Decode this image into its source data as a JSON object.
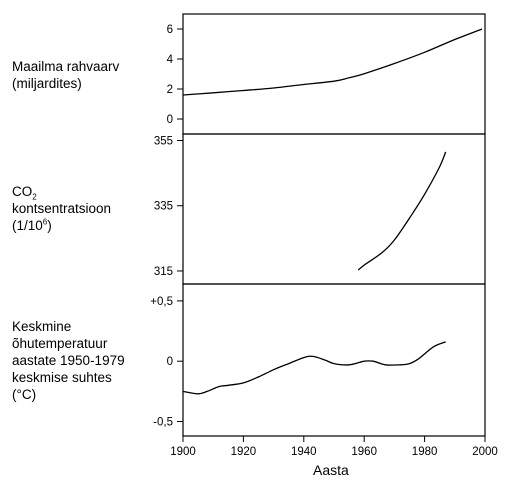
{
  "chart_data": [
    {
      "type": "line",
      "title": "",
      "ylabel_lines": [
        "Maailma rahvaarv",
        "(miljardites)"
      ],
      "xlim": [
        1900,
        2000
      ],
      "ylim": [
        -1,
        7
      ],
      "y_ticks": [
        0,
        2,
        4,
        6
      ],
      "y_tick_labels": [
        "0",
        "2",
        "4",
        "6"
      ],
      "series": [
        {
          "x": [
            1900,
            1910,
            1920,
            1930,
            1940,
            1950,
            1955,
            1960,
            1970,
            1980,
            1990,
            1999
          ],
          "y": [
            1.6,
            1.75,
            1.9,
            2.07,
            2.3,
            2.52,
            2.75,
            3.02,
            3.7,
            4.45,
            5.3,
            6.0
          ]
        }
      ]
    },
    {
      "type": "line",
      "title": "",
      "ylabel_parts": {
        "line1_main": "CO",
        "line1_sub": "2",
        "line2": "kontsentratsioon",
        "line3_main": "(1/10",
        "line3_sup": "6",
        "line3_end": ")"
      },
      "xlim": [
        1900,
        2000
      ],
      "ylim": [
        311,
        357
      ],
      "y_ticks": [
        315,
        335,
        355
      ],
      "y_tick_labels": [
        "315",
        "335",
        "355"
      ],
      "series": [
        {
          "x": [
            1958,
            1960,
            1966,
            1970,
            1975,
            1980,
            1985,
            1987
          ],
          "y": [
            315.3,
            316.8,
            320.7,
            324.5,
            331.2,
            338.5,
            347.0,
            351.5
          ]
        }
      ]
    },
    {
      "type": "line",
      "title": "",
      "ylabel_lines": [
        "Keskmine",
        "õhutemperatuur",
        "aastate 1950-1979",
        "keskmise suhtes",
        "(°C)"
      ],
      "xlim": [
        1900,
        2000
      ],
      "ylim": [
        -0.62,
        0.64
      ],
      "y_ticks": [
        -0.5,
        0,
        0.5
      ],
      "y_tick_labels": [
        "-0,5",
        "0",
        "+0,5"
      ],
      "x_ticks": [
        1900,
        1920,
        1940,
        1960,
        1980,
        2000
      ],
      "x_tick_labels": [
        "1900",
        "1920",
        "1940",
        "1960",
        "1980",
        "2000"
      ],
      "xlabel": "Aasta",
      "series": [
        {
          "x": [
            1900,
            1905,
            1908,
            1912,
            1915,
            1920,
            1925,
            1930,
            1935,
            1940,
            1943,
            1947,
            1950,
            1955,
            1960,
            1963,
            1967,
            1972,
            1975,
            1978,
            1983,
            1987
          ],
          "y": [
            -0.25,
            -0.27,
            -0.25,
            -0.21,
            -0.2,
            -0.18,
            -0.13,
            -0.07,
            -0.02,
            0.03,
            0.04,
            0.01,
            -0.02,
            -0.03,
            0.0,
            0.0,
            -0.03,
            -0.03,
            -0.02,
            0.02,
            0.12,
            0.16
          ]
        }
      ]
    }
  ]
}
